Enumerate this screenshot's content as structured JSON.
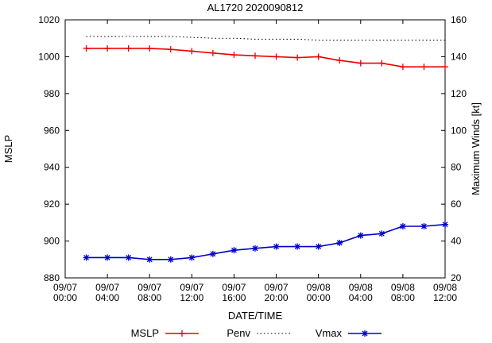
{
  "page": {
    "title": "AL1720 2020090812"
  },
  "chart_data": {
    "type": "line",
    "title": "AL1720 2020090812",
    "xlabel": "DATE/TIME",
    "ylabel_left": "MSLP",
    "ylabel_right": "Maximum Winds [kt]",
    "ylim_left": [
      880,
      1020
    ],
    "ylim_right": [
      20,
      160
    ],
    "ytick_step": 20,
    "xlim_hours": [
      0,
      36
    ],
    "grid": false,
    "legend_position": "bottom-center",
    "x_ticks": [
      {
        "hour": 0,
        "label": [
          "09/07",
          "00:00"
        ]
      },
      {
        "hour": 4,
        "label": [
          "09/07",
          "04:00"
        ]
      },
      {
        "hour": 8,
        "label": [
          "09/07",
          "08:00"
        ]
      },
      {
        "hour": 12,
        "label": [
          "09/07",
          "12:00"
        ]
      },
      {
        "hour": 16,
        "label": [
          "09/07",
          "16:00"
        ]
      },
      {
        "hour": 20,
        "label": [
          "09/07",
          "20:00"
        ]
      },
      {
        "hour": 24,
        "label": [
          "09/08",
          "00:00"
        ]
      },
      {
        "hour": 28,
        "label": [
          "09/08",
          "04:00"
        ]
      },
      {
        "hour": 32,
        "label": [
          "09/08",
          "08:00"
        ]
      },
      {
        "hour": 36,
        "label": [
          "09/08",
          "12:00"
        ]
      }
    ],
    "series": [
      {
        "name": "MSLP",
        "axis": "left",
        "color": "#ee0000",
        "line": "solid",
        "marker": "plus",
        "x_hours": [
          2,
          4,
          6,
          8,
          10,
          12,
          14,
          16,
          18,
          20,
          22,
          24,
          26,
          28,
          30,
          32,
          34,
          36
        ],
        "values": [
          1004.5,
          1004.5,
          1004.5,
          1004.5,
          1004,
          1003,
          1002,
          1001,
          1000.5,
          1000,
          999.5,
          1000,
          998,
          996.5,
          996.5,
          994.5,
          994.5,
          994.5
        ]
      },
      {
        "name": "Penv",
        "axis": "left",
        "color": "#000000",
        "line": "dotted",
        "marker": "none",
        "x_hours": [
          2,
          4,
          6,
          8,
          10,
          12,
          14,
          16,
          18,
          20,
          22,
          24,
          26,
          28,
          30,
          32,
          34,
          36
        ],
        "values": [
          1011,
          1011,
          1011,
          1011,
          1011,
          1010.5,
          1010,
          1010,
          1009.5,
          1009.5,
          1009.5,
          1009,
          1009,
          1009,
          1009,
          1009,
          1009,
          1009
        ]
      },
      {
        "name": "Vmax",
        "axis": "right",
        "color": "#0000cc",
        "line": "solid",
        "marker": "asterisk",
        "x_hours": [
          2,
          4,
          6,
          8,
          10,
          12,
          14,
          16,
          18,
          20,
          22,
          24,
          26,
          28,
          30,
          32,
          34,
          36
        ],
        "values": [
          31,
          31,
          31,
          30,
          30,
          31,
          33,
          35,
          36,
          37,
          37,
          37,
          39,
          43,
          44,
          48,
          48,
          49
        ]
      }
    ]
  }
}
